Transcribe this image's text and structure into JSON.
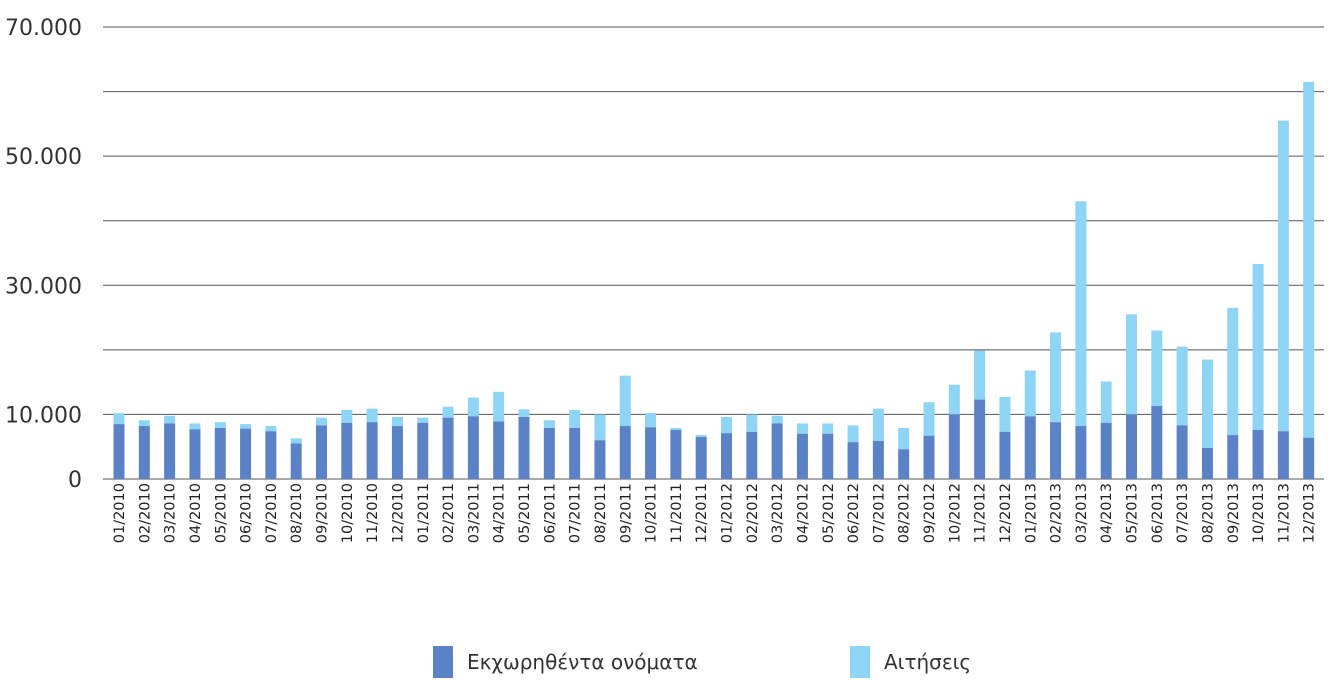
{
  "chart_data": {
    "type": "bar",
    "stacked": true,
    "title": "",
    "xlabel": "",
    "ylabel": "",
    "ylim": [
      0,
      70000
    ],
    "y_tick_labels": [
      "0",
      "10.000",
      "30.000",
      "50.000",
      "70.000"
    ],
    "y_tick_values": [
      0,
      10000,
      30000,
      50000,
      70000
    ],
    "gridlines": [
      0,
      10000,
      20000,
      30000,
      40000,
      50000,
      60000,
      70000
    ],
    "grid": true,
    "legend_position": "bottom",
    "categories": [
      "01/2010",
      "02/2010",
      "03/2010",
      "04/2010",
      "05/2010",
      "06/2010",
      "07/2010",
      "08/2010",
      "09/2010",
      "10/2010",
      "11/2010",
      "12/2010",
      "01/2011",
      "02/2011",
      "03/2011",
      "04/2011",
      "05/2011",
      "06/2011",
      "07/2011",
      "08/2011",
      "09/2011",
      "10/2011",
      "11/2011",
      "12/2011",
      "01/2012",
      "02/2012",
      "03/2012",
      "04/2012",
      "05/2012",
      "06/2012",
      "07/2012",
      "08/2012",
      "09/2012",
      "10/2012",
      "11/2012",
      "12/2012",
      "01/2013",
      "02/2013",
      "03/2013",
      "04/2013",
      "05/2013",
      "06/2013",
      "07/2013",
      "08/2013",
      "09/2013",
      "10/2013",
      "11/2013",
      "12/2013"
    ],
    "series": [
      {
        "name": "Εκχωρηθέντα ονόματα",
        "color": "#5b82c6",
        "values": [
          8500,
          8200,
          8600,
          7700,
          7900,
          7800,
          7400,
          5500,
          8300,
          8700,
          8800,
          8200,
          8700,
          9500,
          9700,
          8900,
          9600,
          7900,
          7900,
          6000,
          8200,
          8000,
          7600,
          6500,
          7100,
          7300,
          8600,
          7000,
          7000,
          5700,
          5900,
          4600,
          6700,
          10000,
          12300,
          7300,
          9700,
          8800,
          8200,
          8700,
          10000,
          11300,
          8300,
          4800,
          6800,
          7600,
          7400,
          6400
        ]
      },
      {
        "name": "Αιτήσεις",
        "color": "#8ed4f5",
        "values": [
          10200,
          9100,
          9800,
          8600,
          8800,
          8500,
          8200,
          6300,
          9500,
          10700,
          10900,
          9600,
          9500,
          11200,
          12600,
          13500,
          10800,
          9100,
          10700,
          10000,
          16000,
          10200,
          7900,
          6800,
          9600,
          10000,
          9800,
          8600,
          8600,
          8300,
          10900,
          7900,
          11900,
          14600,
          19900,
          12700,
          16800,
          22700,
          43000,
          15100,
          25500,
          23000,
          20500,
          18500,
          26500,
          33300,
          55500,
          61500
        ]
      }
    ]
  }
}
